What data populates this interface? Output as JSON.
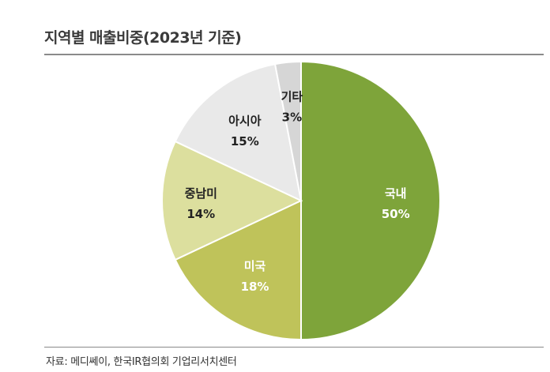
{
  "header": {
    "title": "지역별 매출비중(2023년 기준)"
  },
  "source": "자료: 메디쎄이, 한국IR협의회 기업리서치센터",
  "chart_data": {
    "type": "pie",
    "title": "지역별 매출비중(2023년 기준)",
    "categories": [
      "국내",
      "미국",
      "중남미",
      "아시아",
      "기타"
    ],
    "values": [
      50,
      18,
      14,
      15,
      3
    ],
    "value_labels": [
      "50%",
      "18%",
      "14%",
      "15%",
      "3%"
    ],
    "colors": [
      "#7ea43a",
      "#bfc35a",
      "#dcdf9e",
      "#e9e9e9",
      "#d6d6d6"
    ],
    "label_colors": [
      "#ffffff",
      "#ffffff",
      "#222222",
      "#222222",
      "#222222"
    ],
    "start": "12 o'clock",
    "direction": "clockwise",
    "legend": "none"
  }
}
